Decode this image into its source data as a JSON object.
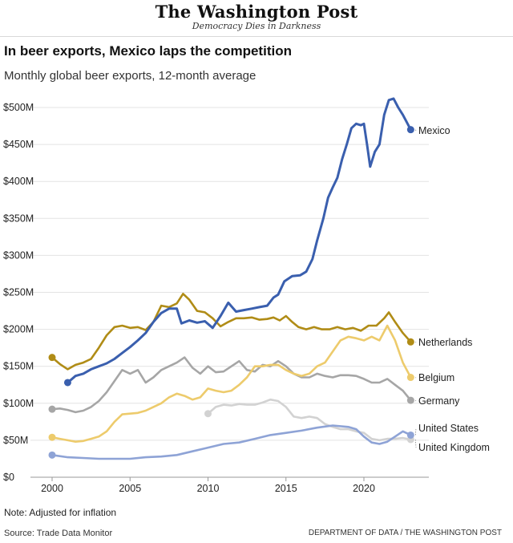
{
  "masthead": {
    "logo": "The Washington Post",
    "tagline": "Democracy Dies in Darkness"
  },
  "header": {
    "title": "In beer exports, Mexico laps the competition",
    "subtitle": "Monthly global beer exports, 12-month average"
  },
  "footer": {
    "note": "Note: Adjusted for inflation",
    "source": "Source: Trade Data Monitor",
    "credit": "DEPARTMENT OF DATA / THE WASHINGTON POST"
  },
  "chart_data": {
    "type": "line",
    "title": "In beer exports, Mexico laps the competition",
    "subtitle": "Monthly global beer exports, 12-month average",
    "xlabel": "",
    "ylabel": "",
    "xlim": [
      2000,
      2023.5
    ],
    "ylim": [
      0,
      500
    ],
    "x_ticks": [
      2000,
      2005,
      2010,
      2015,
      2020
    ],
    "y_ticks": [
      0,
      50,
      100,
      150,
      200,
      250,
      300,
      350,
      400,
      450,
      500
    ],
    "y_tick_labels": [
      "$0",
      "$50M",
      "$100M",
      "$150M",
      "$200M",
      "$250M",
      "$300M",
      "$350M",
      "$400M",
      "$450M",
      "$500M"
    ],
    "grid": true,
    "legend": "direct labels at right end of lines",
    "series": [
      {
        "name": "Mexico",
        "color": "#3a5fae",
        "points": [
          [
            2001.0,
            128
          ],
          [
            2001.5,
            137
          ],
          [
            2002.0,
            140
          ],
          [
            2002.5,
            146
          ],
          [
            2003.0,
            150
          ],
          [
            2003.5,
            154
          ],
          [
            2004.0,
            160
          ],
          [
            2004.5,
            168
          ],
          [
            2005.0,
            176
          ],
          [
            2005.5,
            185
          ],
          [
            2006.0,
            195
          ],
          [
            2006.5,
            210
          ],
          [
            2007.0,
            222
          ],
          [
            2007.5,
            228
          ],
          [
            2008.0,
            228
          ],
          [
            2008.3,
            208
          ],
          [
            2008.8,
            212
          ],
          [
            2009.3,
            209
          ],
          [
            2009.8,
            211
          ],
          [
            2010.3,
            202
          ],
          [
            2010.8,
            218
          ],
          [
            2011.3,
            236
          ],
          [
            2011.8,
            224
          ],
          [
            2012.3,
            226
          ],
          [
            2012.8,
            228
          ],
          [
            2013.3,
            230
          ],
          [
            2013.8,
            232
          ],
          [
            2014.2,
            243
          ],
          [
            2014.5,
            247
          ],
          [
            2014.9,
            265
          ],
          [
            2015.4,
            272
          ],
          [
            2015.9,
            273
          ],
          [
            2016.3,
            278
          ],
          [
            2016.7,
            295
          ],
          [
            2017.0,
            320
          ],
          [
            2017.4,
            350
          ],
          [
            2017.7,
            378
          ],
          [
            2018.0,
            392
          ],
          [
            2018.3,
            405
          ],
          [
            2018.6,
            430
          ],
          [
            2018.9,
            450
          ],
          [
            2019.2,
            472
          ],
          [
            2019.5,
            478
          ],
          [
            2019.8,
            476
          ],
          [
            2020.0,
            478
          ],
          [
            2020.2,
            450
          ],
          [
            2020.4,
            420
          ],
          [
            2020.7,
            440
          ],
          [
            2021.0,
            450
          ],
          [
            2021.3,
            490
          ],
          [
            2021.6,
            510
          ],
          [
            2021.9,
            512
          ],
          [
            2022.2,
            500
          ],
          [
            2022.5,
            490
          ],
          [
            2022.8,
            478
          ],
          [
            2023.0,
            470
          ]
        ]
      },
      {
        "name": "Netherlands",
        "color": "#b08c16",
        "points": [
          [
            2000.0,
            162
          ],
          [
            2000.5,
            153
          ],
          [
            2001.0,
            146
          ],
          [
            2001.5,
            152
          ],
          [
            2002.0,
            155
          ],
          [
            2002.5,
            160
          ],
          [
            2003.0,
            175
          ],
          [
            2003.5,
            192
          ],
          [
            2004.0,
            203
          ],
          [
            2004.5,
            205
          ],
          [
            2005.0,
            202
          ],
          [
            2005.5,
            203
          ],
          [
            2006.0,
            199
          ],
          [
            2006.5,
            210
          ],
          [
            2007.0,
            232
          ],
          [
            2007.5,
            230
          ],
          [
            2008.0,
            235
          ],
          [
            2008.4,
            248
          ],
          [
            2008.8,
            240
          ],
          [
            2009.3,
            225
          ],
          [
            2009.8,
            223
          ],
          [
            2010.3,
            215
          ],
          [
            2010.8,
            204
          ],
          [
            2011.3,
            210
          ],
          [
            2011.8,
            215
          ],
          [
            2012.3,
            215
          ],
          [
            2012.8,
            216
          ],
          [
            2013.3,
            213
          ],
          [
            2013.8,
            214
          ],
          [
            2014.2,
            216
          ],
          [
            2014.6,
            212
          ],
          [
            2015.0,
            218
          ],
          [
            2015.4,
            210
          ],
          [
            2015.8,
            203
          ],
          [
            2016.3,
            200
          ],
          [
            2016.8,
            203
          ],
          [
            2017.3,
            200
          ],
          [
            2017.8,
            200
          ],
          [
            2018.3,
            203
          ],
          [
            2018.8,
            200
          ],
          [
            2019.3,
            202
          ],
          [
            2019.8,
            198
          ],
          [
            2020.3,
            205
          ],
          [
            2020.8,
            205
          ],
          [
            2021.3,
            215
          ],
          [
            2021.6,
            223
          ],
          [
            2022.0,
            210
          ],
          [
            2022.5,
            195
          ],
          [
            2023.0,
            183
          ]
        ]
      },
      {
        "name": "Belgium",
        "color": "#edcb6c",
        "points": [
          [
            2000.0,
            54
          ],
          [
            2000.5,
            52
          ],
          [
            2001.0,
            50
          ],
          [
            2001.5,
            48
          ],
          [
            2002.0,
            49
          ],
          [
            2002.5,
            52
          ],
          [
            2003.0,
            55
          ],
          [
            2003.5,
            62
          ],
          [
            2004.0,
            75
          ],
          [
            2004.5,
            85
          ],
          [
            2005.0,
            86
          ],
          [
            2005.5,
            87
          ],
          [
            2006.0,
            90
          ],
          [
            2006.5,
            95
          ],
          [
            2007.0,
            100
          ],
          [
            2007.5,
            108
          ],
          [
            2008.0,
            113
          ],
          [
            2008.5,
            110
          ],
          [
            2009.0,
            105
          ],
          [
            2009.5,
            108
          ],
          [
            2010.0,
            120
          ],
          [
            2010.5,
            117
          ],
          [
            2011.0,
            115
          ],
          [
            2011.5,
            117
          ],
          [
            2012.0,
            125
          ],
          [
            2012.5,
            135
          ],
          [
            2013.0,
            150
          ],
          [
            2013.5,
            150
          ],
          [
            2014.0,
            152
          ],
          [
            2014.5,
            152
          ],
          [
            2015.0,
            145
          ],
          [
            2015.5,
            140
          ],
          [
            2016.0,
            137
          ],
          [
            2016.5,
            140
          ],
          [
            2017.0,
            150
          ],
          [
            2017.5,
            155
          ],
          [
            2018.0,
            170
          ],
          [
            2018.5,
            185
          ],
          [
            2019.0,
            190
          ],
          [
            2019.5,
            188
          ],
          [
            2020.0,
            185
          ],
          [
            2020.5,
            190
          ],
          [
            2021.0,
            185
          ],
          [
            2021.5,
            205
          ],
          [
            2022.0,
            185
          ],
          [
            2022.5,
            155
          ],
          [
            2023.0,
            135
          ]
        ]
      },
      {
        "name": "Germany",
        "color": "#a6a6a6",
        "points": [
          [
            2000.0,
            92
          ],
          [
            2000.5,
            93
          ],
          [
            2001.0,
            91
          ],
          [
            2001.5,
            88
          ],
          [
            2002.0,
            90
          ],
          [
            2002.5,
            95
          ],
          [
            2003.0,
            103
          ],
          [
            2003.5,
            115
          ],
          [
            2004.0,
            130
          ],
          [
            2004.5,
            145
          ],
          [
            2005.0,
            140
          ],
          [
            2005.5,
            145
          ],
          [
            2006.0,
            128
          ],
          [
            2006.5,
            135
          ],
          [
            2007.0,
            145
          ],
          [
            2007.5,
            150
          ],
          [
            2008.0,
            155
          ],
          [
            2008.5,
            162
          ],
          [
            2009.0,
            148
          ],
          [
            2009.5,
            140
          ],
          [
            2010.0,
            150
          ],
          [
            2010.5,
            142
          ],
          [
            2011.0,
            143
          ],
          [
            2011.5,
            150
          ],
          [
            2012.0,
            157
          ],
          [
            2012.5,
            145
          ],
          [
            2013.0,
            143
          ],
          [
            2013.5,
            152
          ],
          [
            2014.0,
            150
          ],
          [
            2014.5,
            157
          ],
          [
            2015.0,
            150
          ],
          [
            2015.5,
            140
          ],
          [
            2016.0,
            135
          ],
          [
            2016.5,
            135
          ],
          [
            2017.0,
            140
          ],
          [
            2017.5,
            137
          ],
          [
            2018.0,
            135
          ],
          [
            2018.5,
            138
          ],
          [
            2019.0,
            138
          ],
          [
            2019.5,
            137
          ],
          [
            2020.0,
            133
          ],
          [
            2020.5,
            128
          ],
          [
            2021.0,
            128
          ],
          [
            2021.5,
            133
          ],
          [
            2022.0,
            125
          ],
          [
            2022.5,
            117
          ],
          [
            2023.0,
            104
          ]
        ]
      },
      {
        "name": "United States",
        "color": "#8ea3d6",
        "points": [
          [
            2000.0,
            30
          ],
          [
            2001.0,
            27
          ],
          [
            2002.0,
            26
          ],
          [
            2003.0,
            25
          ],
          [
            2004.0,
            25
          ],
          [
            2005.0,
            25
          ],
          [
            2006.0,
            27
          ],
          [
            2007.0,
            28
          ],
          [
            2008.0,
            30
          ],
          [
            2009.0,
            35
          ],
          [
            2010.0,
            40
          ],
          [
            2011.0,
            45
          ],
          [
            2012.0,
            47
          ],
          [
            2013.0,
            52
          ],
          [
            2014.0,
            57
          ],
          [
            2015.0,
            60
          ],
          [
            2016.0,
            63
          ],
          [
            2017.0,
            67
          ],
          [
            2018.0,
            70
          ],
          [
            2019.0,
            68
          ],
          [
            2019.5,
            65
          ],
          [
            2020.0,
            55
          ],
          [
            2020.5,
            47
          ],
          [
            2021.0,
            45
          ],
          [
            2021.5,
            48
          ],
          [
            2022.0,
            55
          ],
          [
            2022.5,
            62
          ],
          [
            2023.0,
            57
          ]
        ]
      },
      {
        "name": "United Kingdom",
        "color": "#d2d2d2",
        "points": [
          [
            2010.0,
            86
          ],
          [
            2010.5,
            95
          ],
          [
            2011.0,
            98
          ],
          [
            2011.5,
            97
          ],
          [
            2012.0,
            99
          ],
          [
            2012.5,
            98
          ],
          [
            2013.0,
            98
          ],
          [
            2013.5,
            101
          ],
          [
            2014.0,
            105
          ],
          [
            2014.5,
            103
          ],
          [
            2015.0,
            95
          ],
          [
            2015.5,
            82
          ],
          [
            2016.0,
            80
          ],
          [
            2016.5,
            82
          ],
          [
            2017.0,
            80
          ],
          [
            2017.5,
            72
          ],
          [
            2018.0,
            68
          ],
          [
            2018.5,
            65
          ],
          [
            2019.0,
            65
          ],
          [
            2019.5,
            62
          ],
          [
            2020.0,
            60
          ],
          [
            2020.5,
            52
          ],
          [
            2021.0,
            50
          ],
          [
            2021.5,
            52
          ],
          [
            2022.0,
            52
          ],
          [
            2022.5,
            53
          ],
          [
            2023.0,
            51
          ]
        ]
      }
    ],
    "line_labels": [
      "Mexico",
      "Netherlands",
      "Belgium",
      "Germany",
      "United States",
      "United Kingdom"
    ]
  }
}
